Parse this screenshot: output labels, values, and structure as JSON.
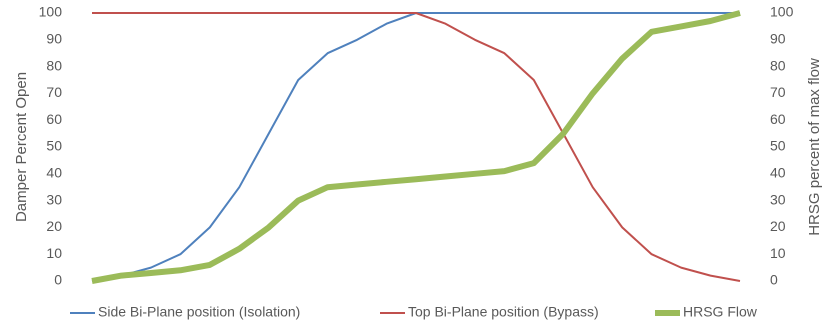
{
  "chart_data": {
    "type": "line",
    "y_label": "Damper Percent Open",
    "y2_label": "HRSG percent of max flow",
    "categories": [
      null,
      null,
      null,
      null,
      null,
      null,
      null,
      null,
      null,
      null,
      null,
      null,
      null,
      null,
      null,
      null,
      null,
      null,
      null,
      null,
      null,
      null,
      null
    ],
    "ylim": [
      0,
      100
    ],
    "yticks": [
      0,
      10,
      20,
      30,
      40,
      50,
      60,
      70,
      80,
      90,
      100
    ],
    "y2lim": [
      0,
      100
    ],
    "y2ticks": [
      0,
      10,
      20,
      30,
      40,
      50,
      60,
      70,
      80,
      90,
      100
    ],
    "grid": false,
    "legend": "bottom",
    "series": [
      {
        "name": "Side Bi-Plane position (Isolation)",
        "color": "#4f81bd",
        "width": 2,
        "values": [
          0,
          2,
          5,
          10,
          20,
          35,
          55,
          75,
          85,
          90,
          96,
          100,
          100,
          100,
          100,
          100,
          100,
          100,
          100,
          100,
          100,
          100,
          100
        ]
      },
      {
        "name": "Top Bi-Plane position (Bypass)",
        "color": "#c0504d",
        "width": 2,
        "values": [
          100,
          100,
          100,
          100,
          100,
          100,
          100,
          100,
          100,
          100,
          100,
          100,
          96,
          90,
          85,
          75,
          55,
          35,
          20,
          10,
          5,
          2,
          0
        ]
      },
      {
        "name": "HRSG Flow",
        "color": "#9bbb59",
        "width": 6,
        "axis": "y2",
        "values": [
          0,
          2,
          3,
          4,
          6,
          12,
          20,
          30,
          35,
          36,
          37,
          38,
          39,
          40,
          41,
          44,
          55,
          70,
          83,
          93,
          95,
          97,
          100
        ]
      }
    ]
  }
}
